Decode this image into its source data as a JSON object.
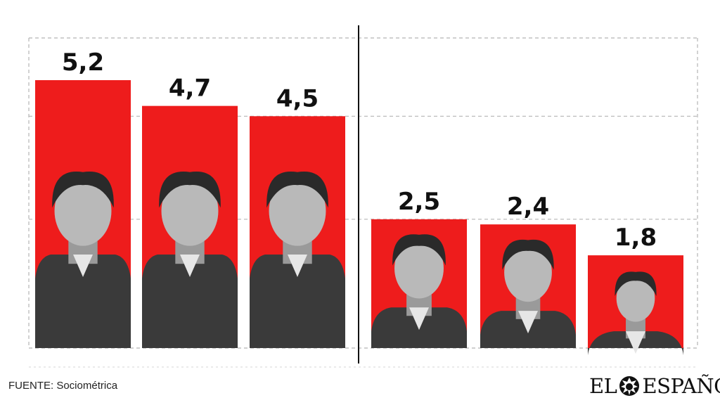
{
  "chart_data": {
    "type": "bar",
    "categories": [
      "",
      "",
      "",
      "",
      "",
      ""
    ],
    "values": [
      5.2,
      4.7,
      4.5,
      2.5,
      2.4,
      1.8
    ],
    "value_labels": [
      "5,2",
      "4,7",
      "4,5",
      "2,5",
      "2,4",
      "1,8"
    ],
    "title": "",
    "xlabel": "",
    "ylabel": "",
    "ylim": [
      0,
      5.5
    ],
    "grid": true,
    "bar_color": "#ee1c1c",
    "groups": [
      [
        0,
        1,
        2
      ],
      [
        3,
        4,
        5
      ]
    ],
    "reference_lines": [
      2.5,
      4.5
    ]
  },
  "source": "FUENTE: Sociométrica",
  "logo": {
    "left": "EL",
    "right": "ESPAÑOL",
    "icon": "lion-head-icon"
  },
  "colors": {
    "bar": "#ee1c1c",
    "grid": "#b5b5b5",
    "divider": "#111111",
    "photo_dark": "#3a3a3a"
  }
}
